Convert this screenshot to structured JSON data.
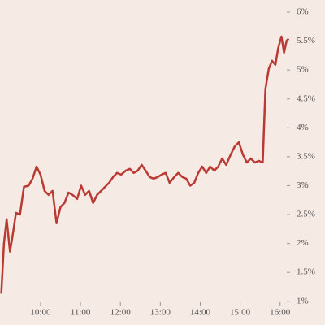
{
  "chart_data": {
    "type": "line",
    "x": [
      541,
      545,
      549,
      554,
      558,
      563,
      569,
      575,
      582,
      588,
      594,
      600,
      606,
      612,
      618,
      624,
      630,
      636,
      642,
      648,
      655,
      661,
      667,
      673,
      679,
      685,
      691,
      697,
      703,
      709,
      715,
      721,
      728,
      734,
      740,
      746,
      752,
      758,
      764,
      770,
      776,
      782,
      788,
      794,
      801,
      807,
      813,
      819,
      825,
      831,
      837,
      843,
      849,
      855,
      861,
      867,
      873,
      879,
      886,
      892,
      898,
      904,
      910,
      916,
      922,
      928,
      934,
      938,
      943,
      948,
      953,
      957,
      962,
      966,
      970,
      973
    ],
    "series": [
      {
        "color": "#b93a33",
        "values": [
          1.13,
          2.0,
          2.42,
          1.86,
          2.14,
          2.53,
          2.5,
          2.98,
          3.0,
          3.12,
          3.33,
          3.19,
          2.91,
          2.84,
          2.91,
          2.35,
          2.63,
          2.7,
          2.88,
          2.84,
          2.77,
          3.0,
          2.84,
          2.91,
          2.7,
          2.84,
          2.91,
          2.98,
          3.05,
          3.15,
          3.22,
          3.19,
          3.26,
          3.29,
          3.22,
          3.26,
          3.36,
          3.26,
          3.15,
          3.12,
          3.15,
          3.19,
          3.22,
          3.05,
          3.15,
          3.22,
          3.15,
          3.12,
          3.0,
          3.05,
          3.22,
          3.33,
          3.22,
          3.33,
          3.26,
          3.33,
          3.47,
          3.36,
          3.54,
          3.68,
          3.75,
          3.54,
          3.4,
          3.47,
          3.4,
          3.43,
          3.4,
          4.67,
          5.02,
          5.16,
          5.09,
          5.37,
          5.58,
          5.3,
          5.51,
          5.54
        ]
      }
    ],
    "xlim": [
      539,
      975
    ],
    "xticks": [
      {
        "value": 600,
        "label": "10:00"
      },
      {
        "value": 660,
        "label": "11:00"
      },
      {
        "value": 720,
        "label": "12:00"
      },
      {
        "value": 780,
        "label": "13:00"
      },
      {
        "value": 840,
        "label": "14:00"
      },
      {
        "value": 900,
        "label": "15:00"
      },
      {
        "value": 960,
        "label": "16:00"
      }
    ],
    "ylim": [
      0.8,
      6
    ],
    "yticks": [
      {
        "value": 1,
        "label": "1%"
      },
      {
        "value": 1.5,
        "label": "1.5%"
      },
      {
        "value": 2,
        "label": "2%"
      },
      {
        "value": 2.5,
        "label": "2.5%"
      },
      {
        "value": 3,
        "label": "3%"
      },
      {
        "value": 3.5,
        "label": "3.5%"
      },
      {
        "value": 4,
        "label": "4%"
      },
      {
        "value": 4.5,
        "label": "4.5%"
      },
      {
        "value": 5,
        "label": "5%"
      },
      {
        "value": 5.5,
        "label": "5.5%"
      },
      {
        "value": 6,
        "label": "6%"
      }
    ],
    "grid": false
  }
}
